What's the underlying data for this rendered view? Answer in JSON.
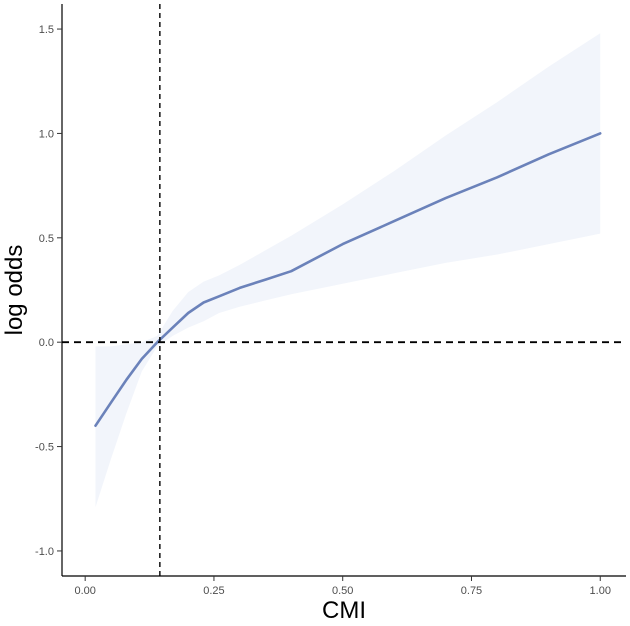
{
  "chart_data": {
    "type": "line",
    "title": "",
    "xlabel": "CMI",
    "ylabel": "log odds",
    "xlim": [
      -0.045,
      1.05
    ],
    "ylim": [
      -1.12,
      1.62
    ],
    "x_ticks": [
      0.0,
      0.25,
      0.5,
      0.75,
      1.0
    ],
    "x_tick_labels": [
      "0.00",
      "0.25",
      "0.50",
      "0.75",
      "1.00"
    ],
    "y_ticks": [
      -1.0,
      -0.5,
      0.0,
      0.5,
      1.0,
      1.5
    ],
    "y_tick_labels": [
      "-1.0",
      "-0.5",
      "0.0",
      "0.5",
      "1.0",
      "1.5"
    ],
    "grid": false,
    "series": [
      {
        "x": [
          0.02,
          0.05,
          0.08,
          0.11,
          0.14,
          0.17,
          0.2,
          0.23,
          0.26,
          0.3,
          0.35,
          0.4,
          0.5,
          0.6,
          0.7,
          0.8,
          0.9,
          1.0
        ],
        "values": [
          -0.4,
          -0.29,
          -0.18,
          -0.08,
          0.0,
          0.07,
          0.14,
          0.19,
          0.22,
          0.26,
          0.3,
          0.34,
          0.47,
          0.58,
          0.69,
          0.79,
          0.9,
          1.0
        ],
        "lower": [
          -0.79,
          -0.56,
          -0.34,
          -0.14,
          -0.02,
          0.03,
          0.07,
          0.1,
          0.14,
          0.17,
          0.2,
          0.23,
          0.28,
          0.33,
          0.38,
          0.42,
          0.47,
          0.52
        ],
        "upper": [
          -0.02,
          -0.02,
          -0.01,
          0.0,
          0.03,
          0.15,
          0.24,
          0.29,
          0.32,
          0.37,
          0.44,
          0.51,
          0.66,
          0.82,
          0.99,
          1.15,
          1.32,
          1.48
        ],
        "color": "#6b82ba",
        "band_color": "#f2f5fb"
      }
    ],
    "reference_lines": {
      "vertical_x": 0.145,
      "horizontal_y": 0.0,
      "style": "dashed",
      "color": "#000000"
    }
  }
}
